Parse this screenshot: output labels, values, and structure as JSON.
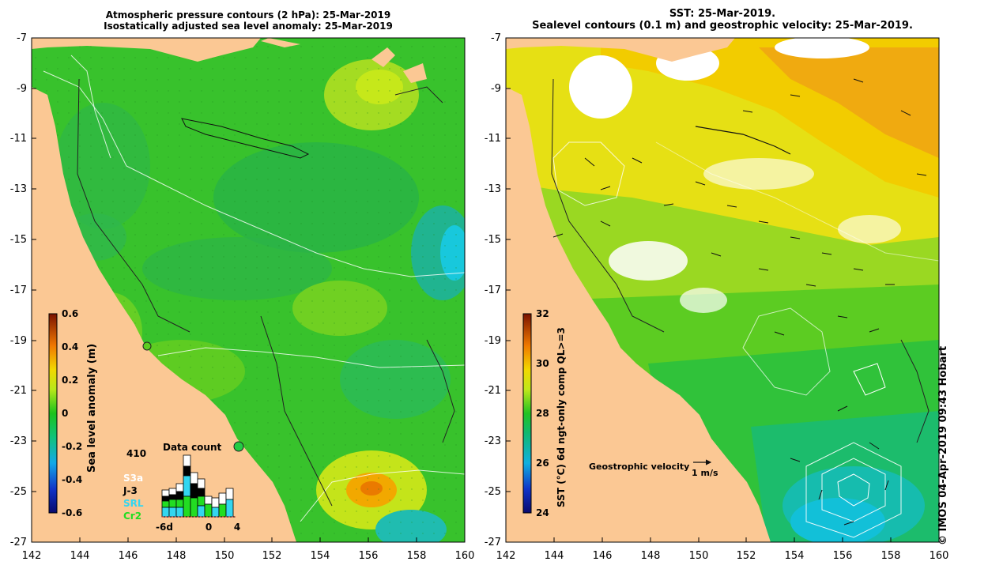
{
  "left_panel": {
    "title_line1": "Atmospheric pressure contours (2 hPa): 25-Mar-2019",
    "title_line2": "Isostatically adjusted sea level anomaly: 25-Mar-2019",
    "y_ticks": [
      "-7",
      "-9",
      "-11",
      "-13",
      "-15",
      "-17",
      "-19",
      "-21",
      "-23",
      "-25",
      "-27"
    ],
    "x_ticks": [
      "142",
      "144",
      "146",
      "148",
      "150",
      "152",
      "154",
      "156",
      "158",
      "160"
    ],
    "colorbar": {
      "label": "Sea level anomaly (m)",
      "ticks": [
        "0.6",
        "0.4",
        "0.2",
        "0",
        "-0.2",
        "-0.4",
        "-0.6"
      ]
    },
    "data_count": {
      "title": "Data count",
      "max_label": "410",
      "x_ticks": [
        "-6d",
        "0",
        "4"
      ],
      "legend": [
        {
          "name": "S3a",
          "color": "#ffffff"
        },
        {
          "name": "J-3",
          "color": "#000000"
        },
        {
          "name": "SRL",
          "color": "#33d6f0"
        },
        {
          "name": "Cr2",
          "color": "#22dd22"
        }
      ]
    }
  },
  "right_panel": {
    "title_line1": "SST: 25-Mar-2019.",
    "title_line2": "Sealevel contours (0.1 m) and geostrophic velocity: 25-Mar-2019.",
    "y_ticks": [
      "-7",
      "-9",
      "-11",
      "-13",
      "-15",
      "-17",
      "-19",
      "-21",
      "-23",
      "-25",
      "-27"
    ],
    "x_ticks": [
      "142",
      "144",
      "146",
      "148",
      "150",
      "152",
      "154",
      "156",
      "158",
      "160"
    ],
    "colorbar": {
      "label": "SST (°C) 6d ngt-only comp QL>=3",
      "ticks": [
        "32",
        "30",
        "28",
        "26",
        "24"
      ]
    },
    "velocity_legend": {
      "label": "Geostrophic velocity",
      "scale": "1 m/s"
    }
  },
  "credit": "© IMOS 04-Apr-2019 09:43 Hobart"
}
